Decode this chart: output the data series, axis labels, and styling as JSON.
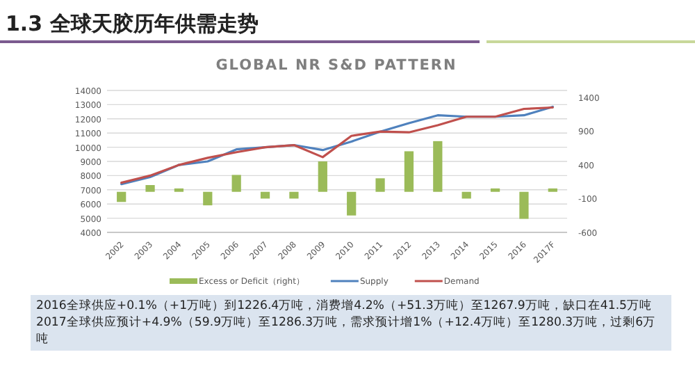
{
  "chart_data": {
    "type": "line",
    "title": "1.3 全球天胶历年供需走势",
    "subtitle": "GLOBAL NR S&D PATTERN",
    "categories": [
      "2002",
      "2003",
      "2004",
      "2005",
      "2006",
      "2007",
      "2008",
      "2009",
      "2010",
      "2011",
      "2012",
      "2013",
      "2014",
      "2015",
      "2016",
      "2017F"
    ],
    "series": [
      {
        "name": "Excess or Deficit（right）",
        "type": "bar",
        "axis": "y2",
        "color": "#9bbb59",
        "values": [
          -150,
          100,
          50,
          -200,
          250,
          -100,
          -100,
          450,
          -350,
          200,
          600,
          750,
          -100,
          50,
          -400,
          50
        ]
      },
      {
        "name": "Supply",
        "color": "#4f81bd",
        "values": [
          7400,
          7900,
          8750,
          9000,
          9850,
          10000,
          10150,
          9800,
          10400,
          11100,
          11700,
          12250,
          12150,
          12150,
          12250,
          12850
        ]
      },
      {
        "name": "Demand",
        "color": "#c0504d",
        "values": [
          7500,
          8000,
          8750,
          9250,
          9650,
          10000,
          10150,
          9300,
          10800,
          11100,
          11050,
          11550,
          12150,
          12150,
          12700,
          12800
        ]
      }
    ],
    "ylim": [
      4000,
      14000
    ],
    "yticks": [
      4000,
      5000,
      6000,
      7000,
      8000,
      9000,
      10000,
      11000,
      12000,
      13000,
      14000
    ],
    "y2lim": [
      -600,
      1500
    ],
    "y2ticks": [
      -600,
      -100,
      400,
      900,
      1400
    ],
    "grid": "y",
    "legend": "bottom",
    "annotations": [
      "2016全球供应+0.1%（+1万吨）到1226.4万吨，消费增4.2%（+51.3万吨）至1267.9万吨，缺口在41.5万吨",
      "2017全球供应预计+4.9%（59.9万吨）至1286.3万吨，需求预计增1%（+12.4万吨）至1280.3万吨，过剩6万吨"
    ]
  }
}
